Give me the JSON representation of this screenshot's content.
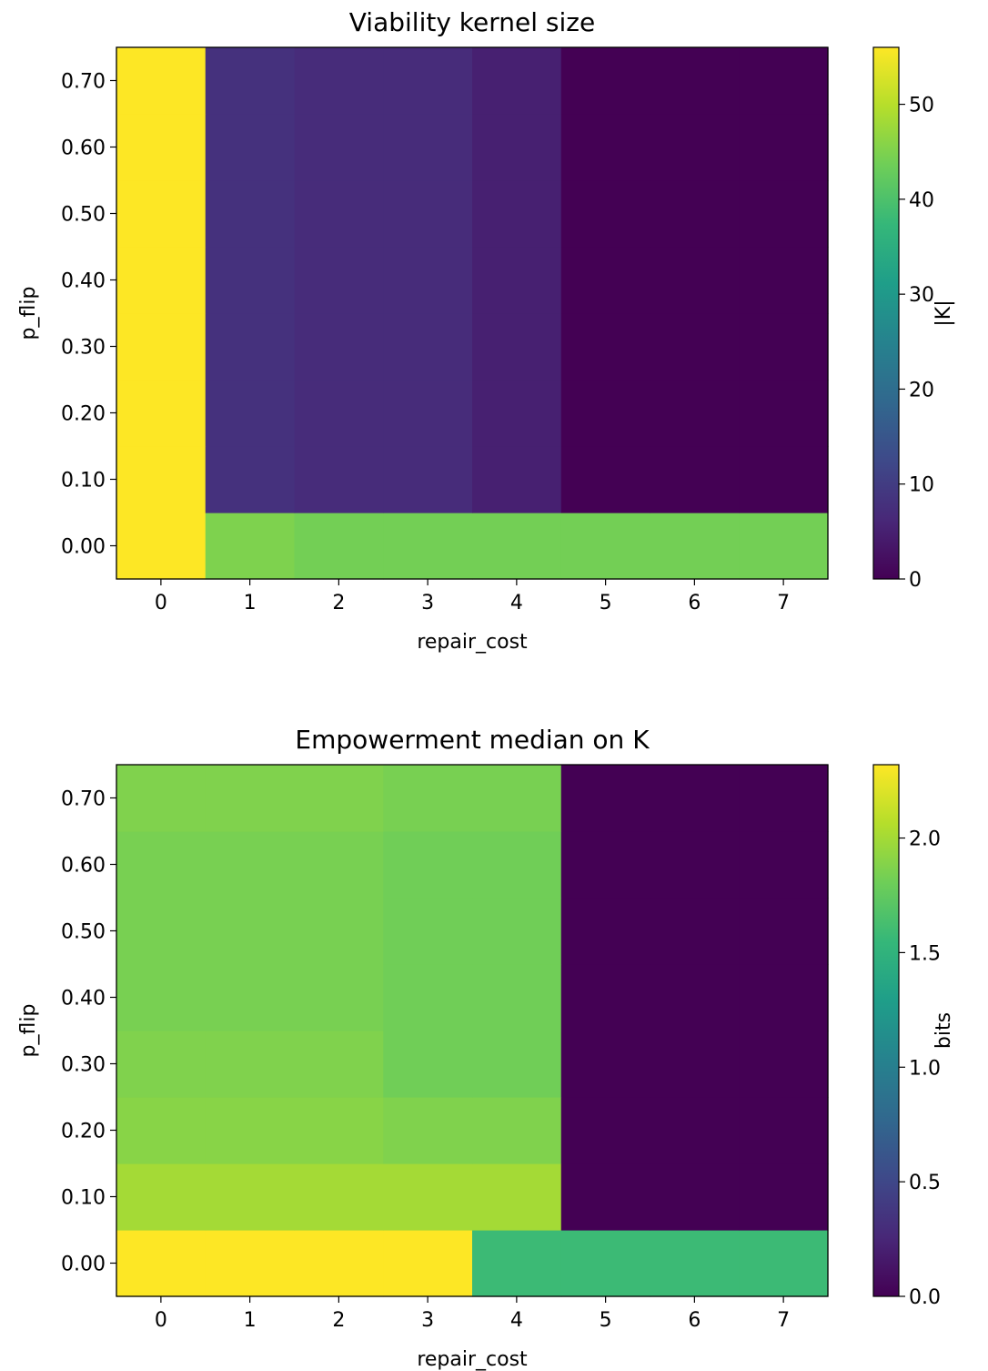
{
  "chart_data": [
    {
      "type": "heatmap",
      "title": "Viability kernel size",
      "xlabel": "repair_cost",
      "ylabel": "p_flip",
      "x": [
        0,
        1,
        2,
        3,
        4,
        5,
        6,
        7
      ],
      "y": [
        "0.00",
        "0.10",
        "0.20",
        "0.30",
        "0.40",
        "0.50",
        "0.60",
        "0.70"
      ],
      "values": [
        [
          56,
          45,
          44,
          44,
          44,
          44,
          44,
          44
        ],
        [
          56,
          8,
          7,
          7,
          5,
          0,
          0,
          0
        ],
        [
          56,
          8,
          7,
          7,
          5,
          0,
          0,
          0
        ],
        [
          56,
          8,
          7,
          7,
          5,
          0,
          0,
          0
        ],
        [
          56,
          8,
          7,
          7,
          5,
          0,
          0,
          0
        ],
        [
          56,
          8,
          7,
          7,
          5,
          0,
          0,
          0
        ],
        [
          56,
          8,
          7,
          7,
          5,
          0,
          0,
          0
        ],
        [
          56,
          8,
          7,
          7,
          5,
          0,
          0,
          0
        ]
      ],
      "colorbar": {
        "label": "|K|",
        "range": [
          0,
          56
        ],
        "ticks": [
          0,
          10,
          20,
          30,
          40,
          50
        ],
        "tick_labels": [
          "0",
          "10",
          "20",
          "30",
          "40",
          "50"
        ]
      },
      "colormap": "viridis",
      "grid": false
    },
    {
      "type": "heatmap",
      "title": "Empowerment median on K",
      "xlabel": "repair_cost",
      "ylabel": "p_flip",
      "x": [
        0,
        1,
        2,
        3,
        4,
        5,
        6,
        7
      ],
      "y": [
        "0.00",
        "0.10",
        "0.20",
        "0.30",
        "0.40",
        "0.50",
        "0.60",
        "0.70"
      ],
      "values": [
        [
          2.32,
          2.32,
          2.32,
          2.32,
          1.58,
          1.58,
          1.58,
          1.58
        ],
        [
          2.0,
          2.0,
          2.0,
          2.0,
          2.0,
          0,
          0,
          0
        ],
        [
          1.9,
          1.9,
          1.9,
          1.87,
          1.87,
          0,
          0,
          0
        ],
        [
          1.87,
          1.87,
          1.87,
          1.81,
          1.81,
          0,
          0,
          0
        ],
        [
          1.84,
          1.84,
          1.84,
          1.81,
          1.81,
          0,
          0,
          0
        ],
        [
          1.84,
          1.84,
          1.84,
          1.81,
          1.81,
          0,
          0,
          0
        ],
        [
          1.84,
          1.84,
          1.84,
          1.81,
          1.81,
          0,
          0,
          0
        ],
        [
          1.87,
          1.87,
          1.87,
          1.84,
          1.84,
          0,
          0,
          0
        ]
      ],
      "colorbar": {
        "label": "bits",
        "range": [
          0,
          2.32
        ],
        "ticks": [
          0,
          0.5,
          1.0,
          1.5,
          2.0
        ],
        "tick_labels": [
          "0.0",
          "0.5",
          "1.0",
          "1.5",
          "2.0"
        ]
      },
      "colormap": "viridis",
      "grid": false
    }
  ]
}
